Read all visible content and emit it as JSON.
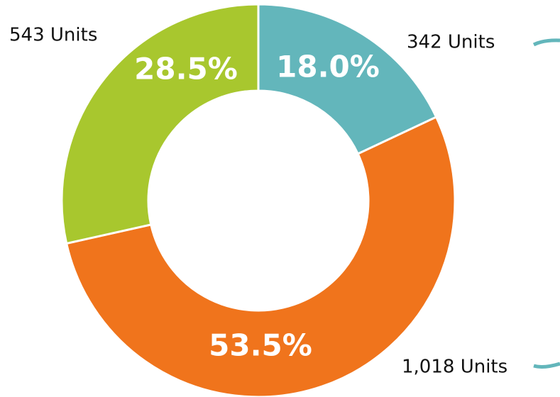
{
  "chart_data": {
    "type": "pie",
    "categories": [
      "342 Units",
      "1,018 Units",
      "543 Units"
    ],
    "values": [
      18.0,
      53.5,
      28.5
    ],
    "value_labels": [
      "18.0%",
      "53.5%",
      "28.5%"
    ],
    "colors": [
      "#63b6bb",
      "#f0741c",
      "#a8c72e"
    ],
    "donut": true
  }
}
